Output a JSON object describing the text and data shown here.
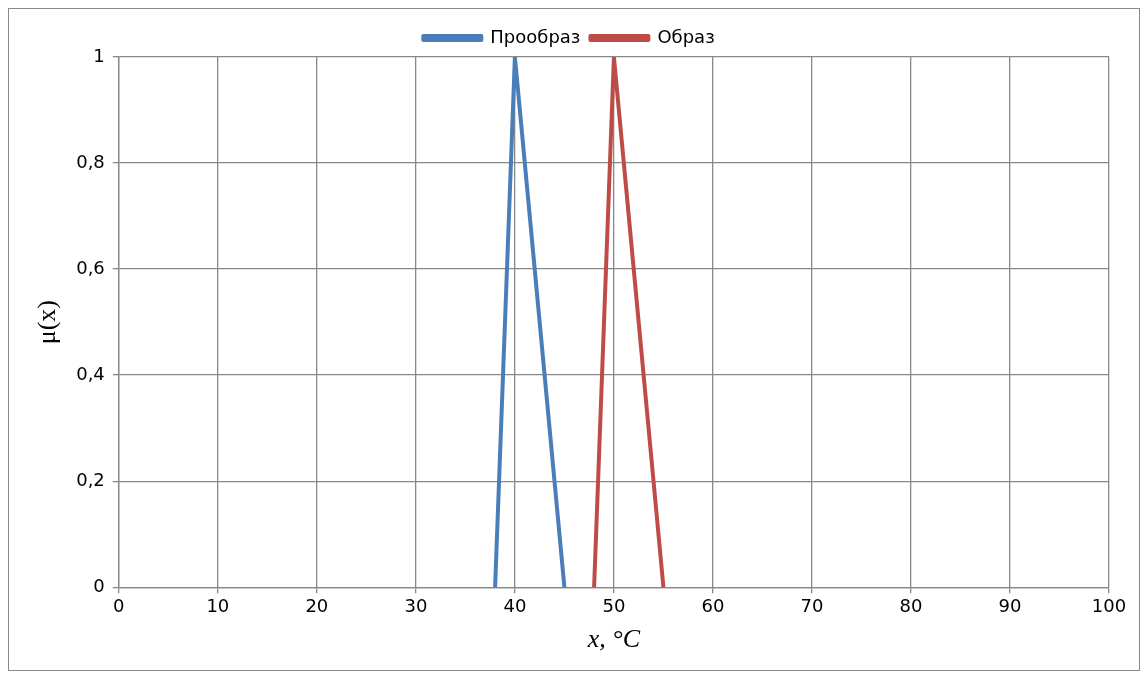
{
  "chart_data": {
    "type": "line",
    "xlabel": "x, °C",
    "ylabel": "μ(x)",
    "xlim": [
      0,
      100
    ],
    "xticks": [
      0,
      10,
      20,
      30,
      40,
      50,
      60,
      70,
      80,
      90,
      100
    ],
    "ylim": [
      0,
      1
    ],
    "yticks": [
      0,
      {
        "value": 0.2,
        "label": "0,2"
      },
      {
        "value": 0.4,
        "label": "0,4"
      },
      {
        "value": 0.6,
        "label": "0,6"
      },
      {
        "value": 0.8,
        "label": "0,8"
      },
      1
    ],
    "grid": true,
    "legend": "top",
    "marker": "none",
    "line_style": "solid",
    "series": [
      {
        "name": "Прообраз",
        "color": "#4a7ebb",
        "x": [
          38,
          40,
          45
        ],
        "values": [
          0,
          1,
          0
        ]
      },
      {
        "name": "Образ",
        "color": "#be4b48",
        "x": [
          48,
          50,
          55
        ],
        "values": [
          0,
          1,
          0
        ]
      }
    ]
  }
}
